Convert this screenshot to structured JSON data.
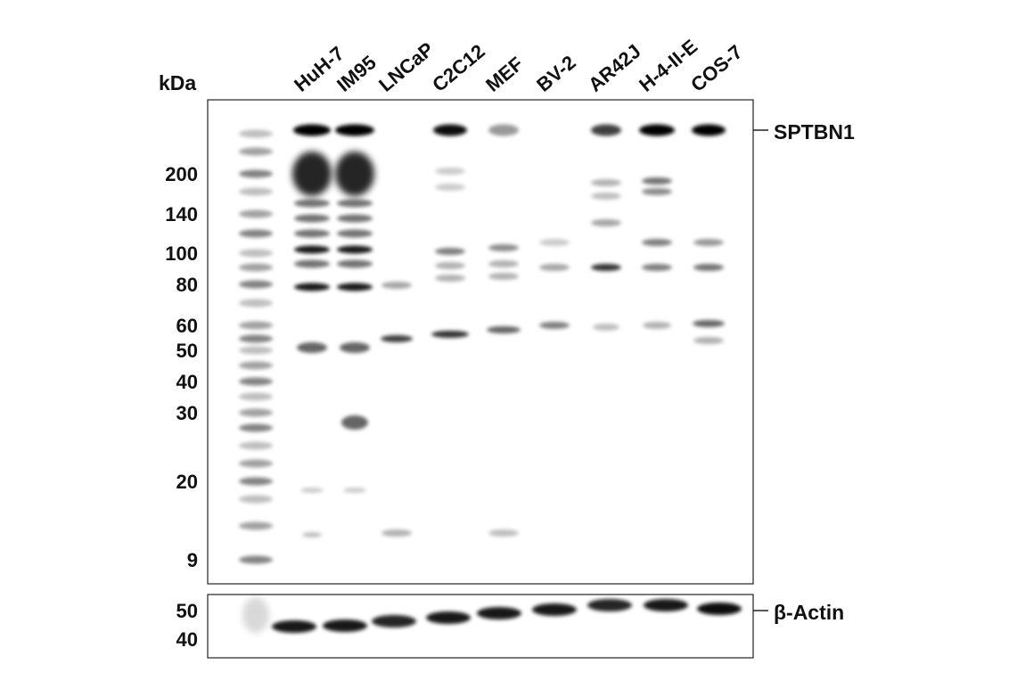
{
  "header": {
    "units": "kDa",
    "lanes": [
      "HuH-7",
      "IM95",
      "LNCaP",
      "C2C12",
      "MEF",
      "BV-2",
      "AR42J",
      "H-4-II-E",
      "COS-7"
    ]
  },
  "top_panel": {
    "markers": [
      "200",
      "140",
      "100",
      "80",
      "60",
      "50",
      "40",
      "30",
      "20",
      "9"
    ],
    "target": "SPTBN1"
  },
  "bottom_panel": {
    "markers": [
      "50",
      "40"
    ],
    "target": "β-Actin"
  }
}
